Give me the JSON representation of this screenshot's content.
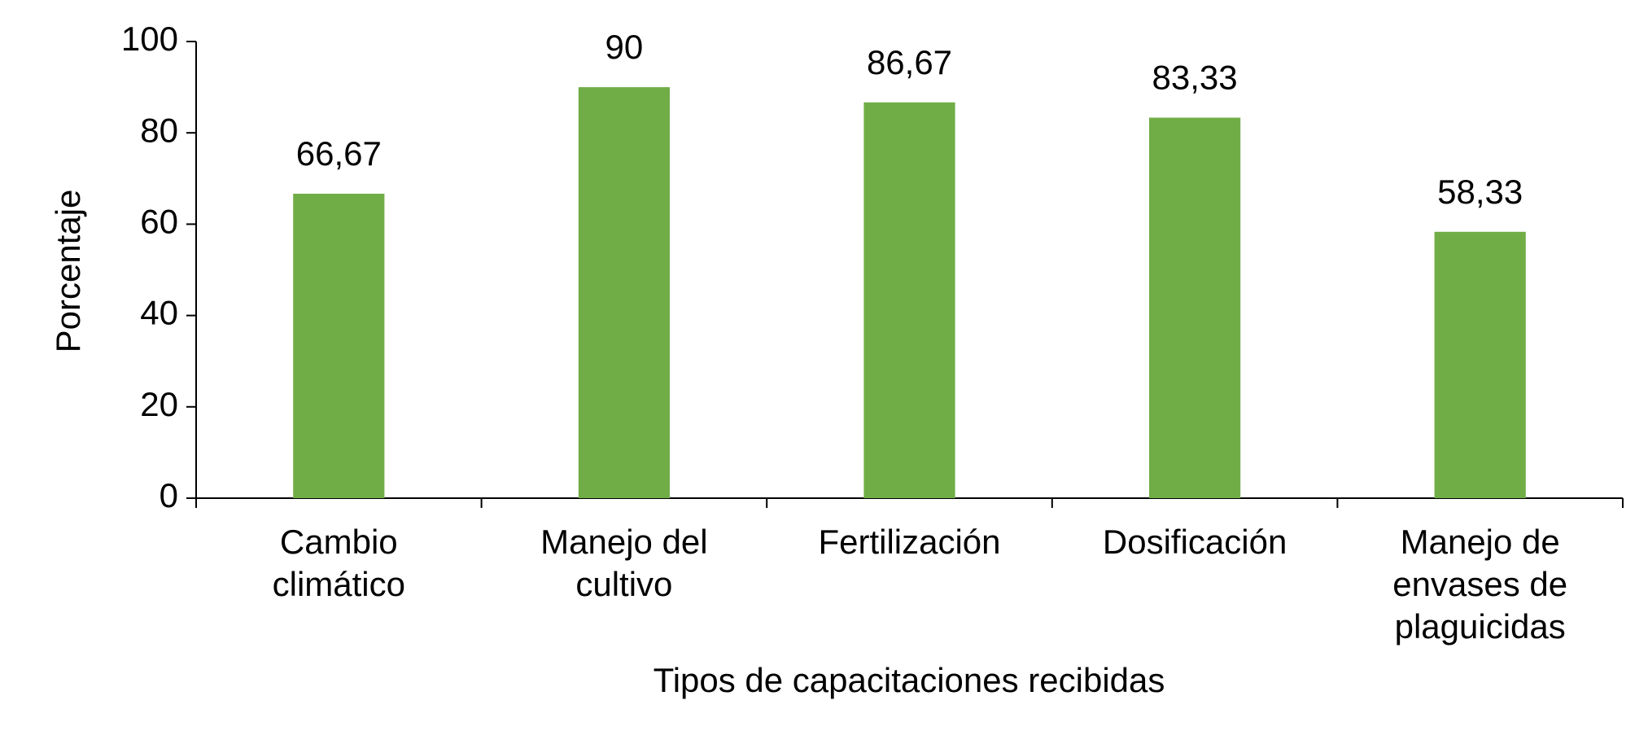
{
  "chart_data": {
    "type": "bar",
    "categories": [
      "Cambio climático",
      "Manejo del cultivo",
      "Fertilización",
      "Dosificación",
      "Manejo de envases de plaguicidas"
    ],
    "values": [
      66.67,
      90,
      86.67,
      83.33,
      58.33
    ],
    "value_labels": [
      "66,67",
      "90",
      "86,67",
      "83,33",
      "58,33"
    ],
    "color": "#70ad47",
    "xlabel": "Tipos de capacitaciones recibidas",
    "ylabel": "Porcentaje",
    "ylim": [
      0,
      100
    ],
    "yticks": [
      0,
      20,
      40,
      60,
      80,
      100
    ],
    "grid": false
  }
}
